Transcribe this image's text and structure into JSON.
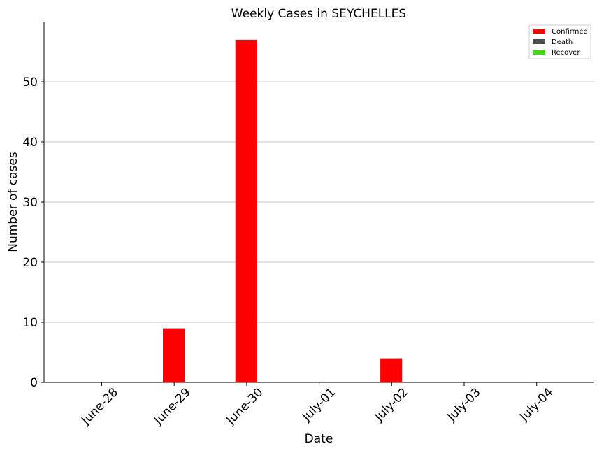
{
  "chart_data": {
    "type": "bar",
    "title": "Weekly Cases in SEYCHELLES",
    "xlabel": "Date",
    "ylabel": "Number of cases",
    "categories": [
      "June-28",
      "June-29",
      "June-30",
      "July-01",
      "July-02",
      "July-03",
      "July-04"
    ],
    "series": [
      {
        "name": "Confirmed",
        "color": "#ff0000",
        "values": [
          0,
          9,
          57,
          0,
          4,
          0,
          0
        ]
      },
      {
        "name": "Death",
        "color": "#4d4d4d",
        "values": [
          0,
          0,
          0,
          0,
          0,
          0,
          0
        ]
      },
      {
        "name": "Recover",
        "color": "#44d814",
        "values": [
          0,
          0,
          0,
          0,
          0,
          0,
          0
        ]
      }
    ],
    "ylim": [
      0,
      60
    ],
    "yticks": [
      0,
      10,
      20,
      30,
      40,
      50
    ],
    "grid": "horizontal",
    "legend_position": "top-right"
  }
}
